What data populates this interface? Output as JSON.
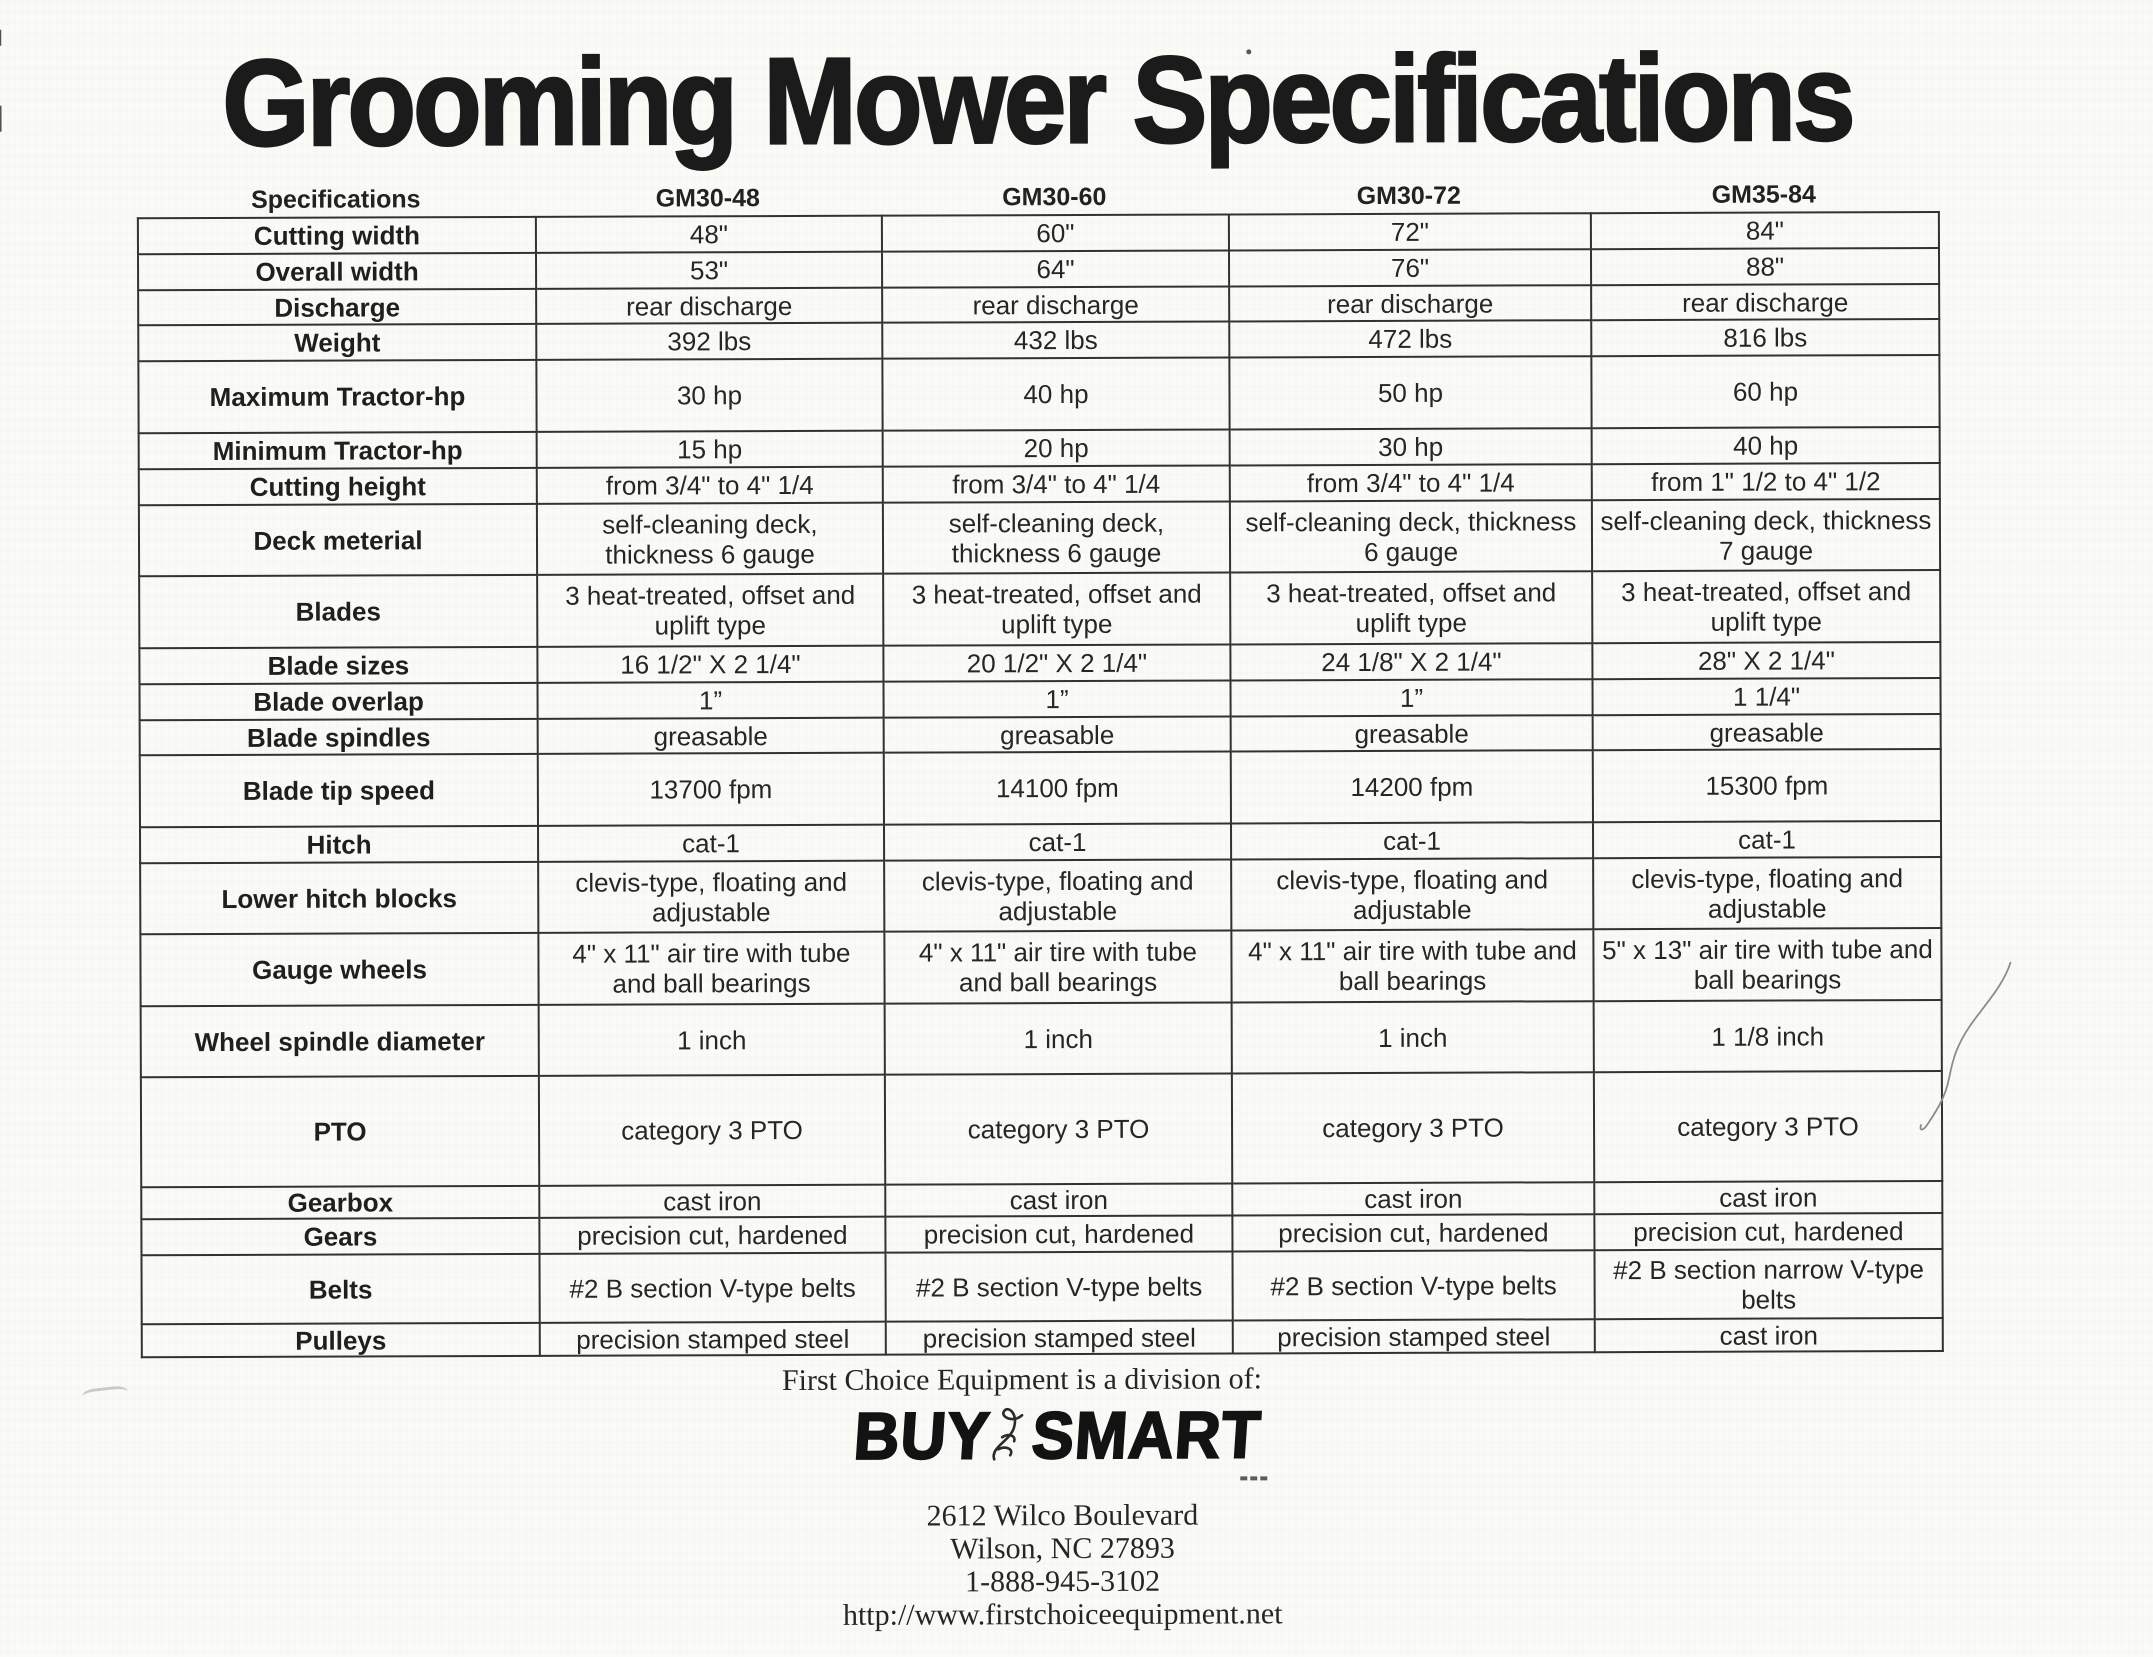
{
  "title": "Grooming Mower Specifications",
  "table": {
    "columns": [
      "Specifications",
      "GM30-48",
      "GM30-60",
      "GM30-72",
      "GM35-84"
    ],
    "rows": [
      {
        "label": "Cutting width",
        "values": [
          "48\"",
          "60\"",
          "72\"",
          "84\""
        ]
      },
      {
        "label": "Overall width",
        "values": [
          "53\"",
          "64\"",
          "76\"",
          "88\""
        ]
      },
      {
        "label": "Discharge",
        "values": [
          "rear discharge",
          "rear discharge",
          "rear discharge",
          "rear discharge"
        ]
      },
      {
        "label": "Weight",
        "values": [
          "392 lbs",
          "432 lbs",
          "472 lbs",
          "816 lbs"
        ]
      },
      {
        "label": "Maximum Tractor-hp",
        "values": [
          "30 hp",
          "40 hp",
          "50 hp",
          "60 hp"
        ]
      },
      {
        "label": "Minimum Tractor-hp",
        "values": [
          "15 hp",
          "20 hp",
          "30 hp",
          "40 hp"
        ]
      },
      {
        "label": "Cutting height",
        "values": [
          "from 3/4\" to 4\" 1/4",
          "from 3/4\" to 4\" 1/4",
          "from 3/4\" to 4\" 1/4",
          "from 1\" 1/2 to 4\" 1/2"
        ]
      },
      {
        "label": "Deck meterial",
        "values": [
          "self-cleaning deck,\nthickness 6 gauge",
          "self-cleaning deck,\nthickness 6 gauge",
          "self-cleaning deck, thickness\n6 gauge",
          "self-cleaning deck, thickness\n7 gauge"
        ]
      },
      {
        "label": "Blades",
        "values": [
          "3 heat-treated, offset and\nuplift type",
          "3 heat-treated, offset and\nuplift type",
          "3 heat-treated, offset and\nuplift type",
          "3 heat-treated, offset and\nuplift type"
        ]
      },
      {
        "label": "Blade sizes",
        "values": [
          "16 1/2\" X 2 1/4\"",
          "20 1/2\" X 2 1/4\"",
          "24 1/8\" X 2 1/4\"",
          "28\" X 2 1/4\""
        ]
      },
      {
        "label": "Blade overlap",
        "values": [
          "1”",
          "1”",
          "1”",
          "1 1/4\""
        ]
      },
      {
        "label": "Blade spindles",
        "values": [
          "greasable",
          "greasable",
          "greasable",
          "greasable"
        ]
      },
      {
        "label": "Blade tip speed",
        "values": [
          "13700 fpm",
          "14100 fpm",
          "14200 fpm",
          "15300 fpm"
        ]
      },
      {
        "label": "Hitch",
        "values": [
          "cat-1",
          "cat-1",
          "cat-1",
          "cat-1"
        ]
      },
      {
        "label": "Lower hitch blocks",
        "values": [
          "clevis-type, floating and\nadjustable",
          "clevis-type, floating and\nadjustable",
          "clevis-type, floating and\nadjustable",
          "clevis-type, floating and\nadjustable"
        ]
      },
      {
        "label": "Gauge wheels",
        "values": [
          "4\" x 11\" air tire with tube\nand ball bearings",
          "4\" x 11\" air tire with tube\nand ball bearings",
          "4\" x 11\" air tire with tube and\nball bearings",
          "5\" x 13\" air tire with tube and\nball bearings"
        ]
      },
      {
        "label": "Wheel spindle diameter",
        "values": [
          "1 inch",
          "1 inch",
          "1 inch",
          "1 1/8 inch"
        ]
      },
      {
        "label": "PTO",
        "values": [
          "category 3 PTO",
          "category 3 PTO",
          "category 3 PTO",
          "category 3 PTO"
        ]
      },
      {
        "label": "Gearbox",
        "values": [
          "cast iron",
          "cast iron",
          "cast iron",
          "cast iron"
        ]
      },
      {
        "label": "Gears",
        "values": [
          "precision cut, hardened",
          "precision cut, hardened",
          "precision cut, hardened",
          "precision cut, hardened"
        ]
      },
      {
        "label": "Belts",
        "values": [
          "#2 B section V-type belts",
          "#2 B section V-type belts",
          "#2 B section V-type belts",
          "#2 B section narrow V-type\nbelts"
        ]
      },
      {
        "label": "Pulleys",
        "values": [
          "precision stamped steel",
          "precision stamped steel",
          "precision stamped steel",
          "cast iron"
        ]
      }
    ]
  },
  "footer": {
    "division_line": "First Choice Equipment is a division of:",
    "logo": {
      "word1": "BUY",
      "word2": "SMART"
    },
    "address_line1": "2612 Wilco Boulevard",
    "address_line2": "Wilson, NC 27893",
    "phone": "1-888-945-3102",
    "website": "http://www.firstchoiceequipment.net"
  },
  "colors": {
    "paper": "#fafaf7",
    "ink": "#232323",
    "border": "#333231"
  }
}
